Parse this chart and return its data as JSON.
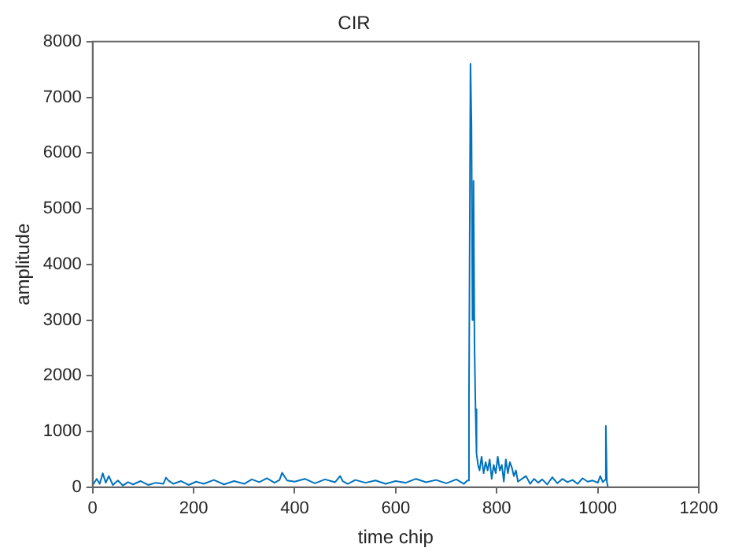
{
  "chart_data": {
    "type": "line",
    "title": "CIR",
    "xlabel": "time chip",
    "ylabel": "amplitude",
    "xlim": [
      0,
      1200
    ],
    "xticks": [
      0,
      200,
      400,
      600,
      800,
      1000,
      1200
    ],
    "ylim": [
      0,
      8000
    ],
    "yticks": [
      0,
      1000,
      2000,
      3000,
      4000,
      5000,
      6000,
      7000,
      8000
    ],
    "grid": false,
    "legend": false,
    "series": [
      {
        "color": "#0072bd",
        "x": [
          1,
          8,
          14,
          20,
          26,
          32,
          40,
          50,
          60,
          70,
          80,
          95,
          110,
          125,
          140,
          145,
          150,
          160,
          175,
          190,
          205,
          220,
          240,
          260,
          280,
          300,
          315,
          330,
          345,
          360,
          370,
          375,
          385,
          400,
          420,
          440,
          460,
          480,
          490,
          495,
          505,
          520,
          540,
          560,
          580,
          600,
          620,
          640,
          660,
          680,
          700,
          720,
          735,
          742,
          745,
          748,
          750,
          752,
          754,
          756,
          758,
          760,
          763,
          766,
          770,
          774,
          778,
          782,
          786,
          790,
          794,
          798,
          802,
          806,
          810,
          814,
          818,
          822,
          826,
          830,
          834,
          838,
          842,
          850,
          858,
          866,
          874,
          882,
          890,
          900,
          910,
          920,
          930,
          940,
          950,
          960,
          970,
          980,
          990,
          1000,
          1005,
          1010,
          1014,
          1016,
          1018,
          1020
        ],
        "values": [
          50,
          150,
          60,
          250,
          80,
          200,
          40,
          120,
          30,
          90,
          50,
          110,
          40,
          80,
          60,
          170,
          120,
          60,
          110,
          40,
          100,
          60,
          130,
          50,
          110,
          60,
          140,
          90,
          160,
          80,
          130,
          260,
          120,
          100,
          150,
          70,
          140,
          90,
          200,
          110,
          60,
          130,
          80,
          120,
          60,
          110,
          80,
          150,
          90,
          130,
          70,
          140,
          60,
          120,
          1500,
          7600,
          6500,
          3000,
          5500,
          2500,
          1400,
          600,
          400,
          300,
          550,
          250,
          450,
          300,
          500,
          150,
          400,
          250,
          550,
          300,
          400,
          100,
          500,
          250,
          450,
          350,
          200,
          300,
          100,
          150,
          200,
          60,
          150,
          80,
          140,
          50,
          180,
          70,
          150,
          90,
          130,
          60,
          160,
          100,
          120,
          80,
          200,
          90,
          130,
          1100,
          100,
          0
        ]
      }
    ]
  }
}
